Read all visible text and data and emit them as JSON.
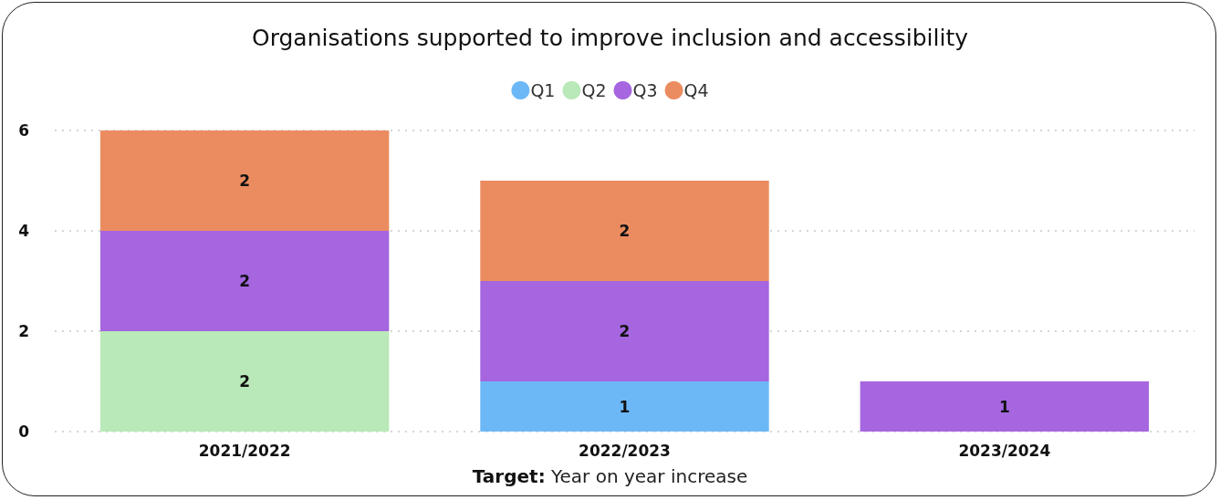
{
  "chart_data": {
    "type": "bar",
    "title": "Organisations supported to improve inclusion and accessibility",
    "categories": [
      "2021/2022",
      "2022/2023",
      "2023/2024"
    ],
    "series": [
      {
        "name": "Q1",
        "color": "#6cb8f6",
        "values": [
          null,
          1,
          null
        ]
      },
      {
        "name": "Q2",
        "color": "#b9e8b9",
        "values": [
          2,
          null,
          null
        ]
      },
      {
        "name": "Q3",
        "color": "#a566e0",
        "values": [
          2,
          2,
          1
        ]
      },
      {
        "name": "Q4",
        "color": "#eb8c60",
        "values": [
          2,
          2,
          null
        ]
      }
    ],
    "stacked": true,
    "ylim": [
      0,
      6
    ],
    "yticks": [
      0,
      2,
      4,
      6
    ],
    "grid": "y",
    "legend": "top",
    "data_labels": true,
    "annotations": [
      "Target: Year on year increase"
    ]
  }
}
